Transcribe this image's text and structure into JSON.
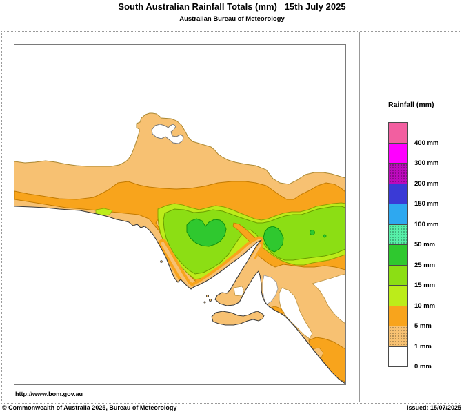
{
  "header": {
    "title": "South Australian Rainfall Totals (mm)   15th July 2025",
    "subtitle": "Australian Bureau of Meteorology"
  },
  "footer": {
    "url": "http://www.bom.gov.au",
    "copyright": "© Commonwealth of Australia 2025, Bureau of Meteorology",
    "issued": "Issued: 15/07/2025"
  },
  "legend": {
    "title": "Rainfall (mm)",
    "entries": [
      {
        "label": "400 mm",
        "color": "#f25fa0",
        "dotted": false
      },
      {
        "label": "300 mm",
        "color": "#ff00ff",
        "dotted": false
      },
      {
        "label": "200 mm",
        "color": "#bc0abc",
        "dotted": true
      },
      {
        "label": "150 mm",
        "color": "#3a3ad6",
        "dotted": false
      },
      {
        "label": "100 mm",
        "color": "#2ea8f0",
        "dotted": false
      },
      {
        "label": "50 mm",
        "color": "#57efa9",
        "dotted": true
      },
      {
        "label": "25 mm",
        "color": "#2fc82f",
        "dotted": false
      },
      {
        "label": "15 mm",
        "color": "#8cde14",
        "dotted": false
      },
      {
        "label": "10 mm",
        "color": "#bcec1a",
        "dotted": false
      },
      {
        "label": "5 mm",
        "color": "#f8a41c",
        "dotted": false
      },
      {
        "label": "1 mm",
        "color": "#f7c172",
        "dotted": true
      },
      {
        "label": "0 mm",
        "color": "#ffffff",
        "dotted": false
      }
    ]
  },
  "map": {
    "palette": {
      "sea": "#ffffff",
      "tan": "#f7c172",
      "orange": "#f8a41c",
      "yg10": "#bcec1a",
      "yg15": "#8cde14",
      "g25": "#2fc82f",
      "lake": "#ffffff",
      "patch_white": "#ffffff"
    },
    "strokes": {
      "coast": "#3a3a3a",
      "contour_tan": "#aa8833",
      "contour_orange": "#c27a00",
      "contour_yg10": "#8aa000",
      "contour_yg15": "#6a9c00",
      "contour_g25": "#0f8f0f",
      "contour_light": "#b89040"
    }
  }
}
